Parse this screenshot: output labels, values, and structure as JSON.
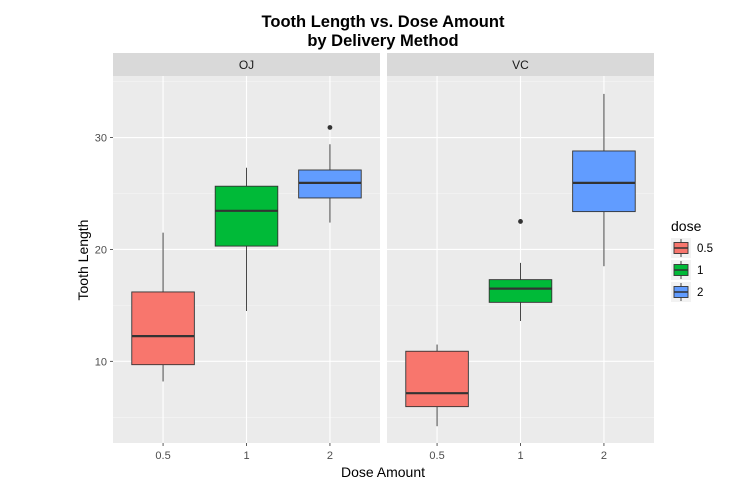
{
  "chart_data": {
    "type": "box",
    "title_line1": "Tooth Length vs. Dose Amount",
    "title_line2": "by Delivery Method",
    "xlabel": "Dose Amount",
    "ylabel": "Tooth Length",
    "ylim": [
      2.7,
      35.5
    ],
    "yticks": [
      10,
      20,
      30
    ],
    "categories": [
      "0.5",
      "1",
      "2"
    ],
    "grid": true,
    "legend": {
      "title": "dose",
      "position": "right",
      "entries": [
        {
          "label": "0.5",
          "color": "#F8766D"
        },
        {
          "label": "1",
          "color": "#00BA38"
        },
        {
          "label": "2",
          "color": "#619CFF"
        }
      ]
    },
    "facets": [
      {
        "label": "OJ",
        "boxes": [
          {
            "dose": "0.5",
            "min": 8.2,
            "q1": 9.7,
            "median": 12.25,
            "q3": 16.2,
            "max": 21.5,
            "outliers": []
          },
          {
            "dose": "1",
            "min": 14.5,
            "q1": 20.3,
            "median": 23.45,
            "q3": 25.65,
            "max": 27.3,
            "outliers": []
          },
          {
            "dose": "2",
            "min": 22.4,
            "q1": 24.6,
            "median": 25.95,
            "q3": 27.1,
            "max": 29.4,
            "outliers": [
              30.9
            ]
          }
        ]
      },
      {
        "label": "VC",
        "boxes": [
          {
            "dose": "0.5",
            "min": 4.2,
            "q1": 5.95,
            "median": 7.15,
            "q3": 10.9,
            "max": 11.5,
            "outliers": []
          },
          {
            "dose": "1",
            "min": 13.6,
            "q1": 15.27,
            "median": 16.5,
            "q3": 17.3,
            "max": 18.8,
            "outliers": [
              22.5
            ]
          },
          {
            "dose": "2",
            "min": 18.5,
            "q1": 23.38,
            "median": 25.95,
            "q3": 28.8,
            "max": 33.9,
            "outliers": []
          }
        ]
      }
    ]
  }
}
